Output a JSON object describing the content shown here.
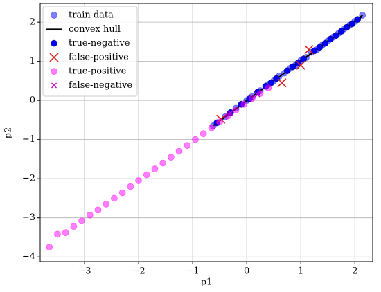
{
  "chart_data": {
    "type": "scatter",
    "xlabel": "p1",
    "ylabel": "p2",
    "xlim": [
      -3.82,
      2.33
    ],
    "ylim": [
      -4.12,
      2.48
    ],
    "xticks": [
      {
        "value": -3,
        "label": "−3"
      },
      {
        "value": -2,
        "label": "−2"
      },
      {
        "value": -1,
        "label": "−1"
      },
      0,
      1,
      2
    ],
    "yticks": [
      {
        "value": -4,
        "label": "−4"
      },
      {
        "value": -3,
        "label": "−3"
      },
      {
        "value": -2,
        "label": "−2"
      },
      {
        "value": -1,
        "label": "−1"
      },
      0,
      1,
      2
    ],
    "grid": true,
    "legend": "upper left",
    "series": [
      {
        "name": "train data",
        "color": "#0000ff",
        "marker": "o",
        "alpha": 0.5,
        "x": [
          -0.62,
          -0.4,
          -0.2,
          0,
          0.1,
          0.25,
          0.4,
          0.5,
          0.6,
          0.7,
          0.8,
          0.9,
          1.0,
          1.1,
          1.2,
          1.3,
          1.4,
          1.5,
          1.6,
          1.7,
          1.8,
          1.9,
          2.0,
          2.14
        ],
        "y": [
          -0.65,
          -0.42,
          -0.2,
          0.0,
          0.1,
          0.25,
          0.41,
          0.5,
          0.62,
          0.7,
          0.82,
          0.9,
          1.02,
          1.1,
          1.23,
          1.3,
          1.42,
          1.52,
          1.62,
          1.72,
          1.83,
          1.92,
          2.02,
          2.18
        ]
      },
      {
        "name": "convex hull",
        "color": "#000000",
        "marker": "line",
        "x": [
          -0.62,
          2.14,
          2.1,
          -0.55,
          -0.62
        ],
        "y": [
          -0.65,
          2.18,
          2.1,
          -0.55,
          -0.65
        ]
      },
      {
        "name": "true-negative",
        "color": "#0000ff",
        "marker": "o",
        "alpha": 1,
        "x": [
          -0.55,
          -0.3,
          -0.1,
          0.05,
          0.2,
          0.35,
          0.45,
          0.55,
          0.75,
          0.85,
          0.95,
          1.05,
          1.25,
          1.35,
          1.45,
          1.55,
          1.65,
          1.75,
          1.85,
          1.95,
          2.05
        ],
        "y": [
          -0.57,
          -0.31,
          -0.1,
          0.04,
          0.21,
          0.36,
          0.45,
          0.56,
          0.76,
          0.86,
          0.96,
          1.06,
          1.27,
          1.36,
          1.46,
          1.57,
          1.66,
          1.77,
          1.87,
          1.96,
          2.07
        ]
      },
      {
        "name": "false-positive",
        "color": "#dd2222",
        "marker": "X",
        "x": [
          -0.48,
          0.65,
          1.15,
          1.0
        ],
        "y": [
          -0.48,
          0.45,
          1.3,
          0.9
        ]
      },
      {
        "name": "true-positive",
        "color": "#ff00ff",
        "marker": "o",
        "alpha": 0.5,
        "x": [
          -3.65,
          -3.5,
          -3.35,
          -3.2,
          -3.05,
          -2.9,
          -2.75,
          -2.6,
          -2.45,
          -2.3,
          -2.15,
          -2.0,
          -1.85,
          -1.7,
          -1.55,
          -1.4,
          -1.25,
          -1.1,
          -0.95,
          -0.8,
          -0.65,
          -0.5,
          -0.35,
          -0.2,
          -0.05,
          0.1,
          0.25,
          0.4
        ],
        "y": [
          -3.75,
          -3.42,
          -3.38,
          -3.22,
          -3.08,
          -2.93,
          -2.8,
          -2.65,
          -2.5,
          -2.36,
          -2.2,
          -2.05,
          -1.9,
          -1.75,
          -1.6,
          -1.45,
          -1.3,
          -1.15,
          -1.0,
          -0.85,
          -0.7,
          -0.55,
          -0.4,
          -0.25,
          -0.1,
          0.05,
          0.18,
          0.32
        ]
      },
      {
        "name": "false-negative",
        "color": "#cc00cc",
        "marker": "x",
        "x": [
          -0.3,
          0.2
        ],
        "y": [
          -0.32,
          0.15
        ]
      }
    ]
  }
}
